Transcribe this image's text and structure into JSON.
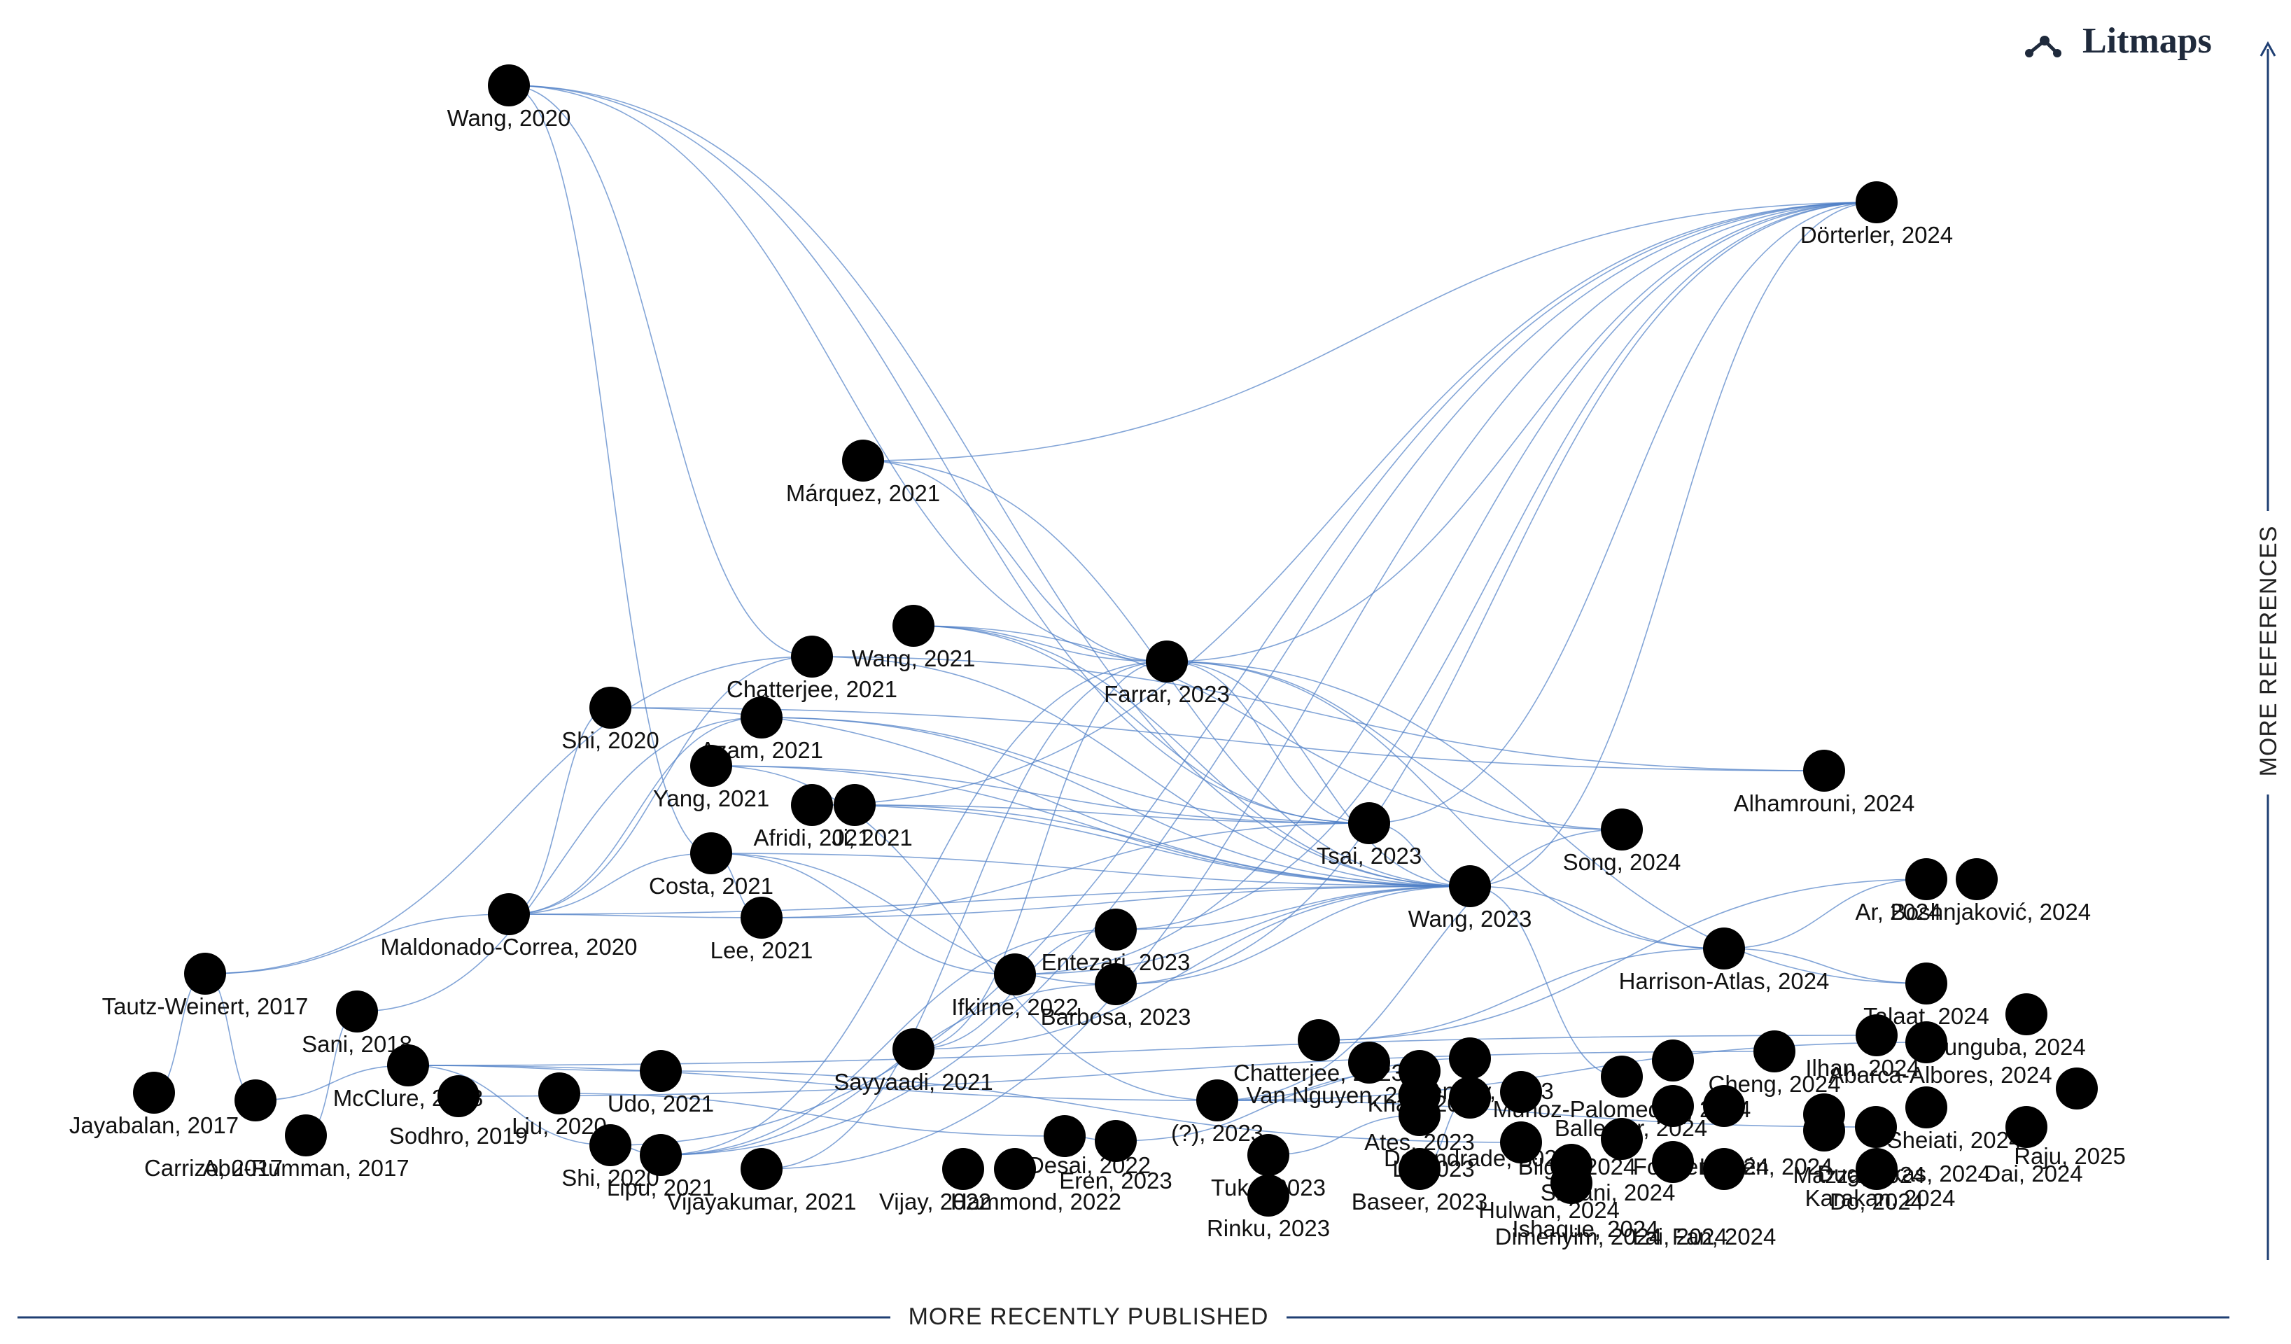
{
  "brand": {
    "name": "Litmaps",
    "icon": "litmaps-logo-icon"
  },
  "axes": {
    "x_label": "MORE RECENTLY PUBLISHED",
    "y_label": "MORE REFERENCES"
  },
  "colors": {
    "edge": "#4f7fc6",
    "node": "#000000",
    "axis": "#1f3f73"
  },
  "papers": [
    {
      "id": "wang2020",
      "label": "Wang, 2020"
    },
    {
      "id": "dorterler2024",
      "label": "Dörterler, 2024"
    },
    {
      "id": "marquez2021",
      "label": "Márquez, 2021"
    },
    {
      "id": "wang2021",
      "label": "Wang, 2021"
    },
    {
      "id": "chatterjee2021",
      "label": "Chatterjee, 2021"
    },
    {
      "id": "farrar2023",
      "label": "Farrar, 2023"
    },
    {
      "id": "shi2020a",
      "label": "Shi, 2020"
    },
    {
      "id": "azam2021",
      "label": "Azam, 2021"
    },
    {
      "id": "yang2021",
      "label": "Yang, 2021"
    },
    {
      "id": "afridi2021",
      "label": "Afridi, 2021"
    },
    {
      "id": "ji2021",
      "label": "Ji, 2021"
    },
    {
      "id": "alhamrouni2024",
      "label": "Alhamrouni, 2024"
    },
    {
      "id": "tsai2023",
      "label": "Tsai, 2023"
    },
    {
      "id": "song2024",
      "label": "Song, 2024"
    },
    {
      "id": "costa2021",
      "label": "Costa, 2021"
    },
    {
      "id": "wang2023",
      "label": "Wang, 2023"
    },
    {
      "id": "maldonado2020",
      "label": "Maldonado-Correa, 2020"
    },
    {
      "id": "lee2021",
      "label": "Lee, 2021"
    },
    {
      "id": "ar2024",
      "label": "Ar, 2024"
    },
    {
      "id": "boshnjakovic2024",
      "label": "Boshnjaković, 2024"
    },
    {
      "id": "tautz2017",
      "label": "Tautz-Weinert, 2017"
    },
    {
      "id": "entezari2023",
      "label": "Entezari, 2023"
    },
    {
      "id": "harrison2024",
      "label": "Harrison-Atlas, 2024"
    },
    {
      "id": "sani2018",
      "label": "Sani, 2018"
    },
    {
      "id": "ifkirne2022",
      "label": "Ifkirne, 2022"
    },
    {
      "id": "barbosa2023",
      "label": "Barbosa, 2023"
    },
    {
      "id": "talaat2024",
      "label": "Talaat, 2024"
    },
    {
      "id": "munguba2024",
      "label": "Munguba, 2024"
    },
    {
      "id": "chatterjee2023",
      "label": "Chatterjee, 2023"
    },
    {
      "id": "ilhan2024",
      "label": "Ilhan, 2024"
    },
    {
      "id": "abarca2024",
      "label": "Abarca-Albores, 2024"
    },
    {
      "id": "jayabalan2017",
      "label": "Jayabalan, 2017"
    },
    {
      "id": "mcclure2018",
      "label": "McClure, 2018"
    },
    {
      "id": "sayyaadi2021",
      "label": "Sayyaadi, 2021"
    },
    {
      "id": "udo2021",
      "label": "Udo, 2021"
    },
    {
      "id": "vannguyen2023",
      "label": "Van Nguyen, 2023"
    },
    {
      "id": "khan2023",
      "label": "Khan, 2023"
    },
    {
      "id": "bentley2023",
      "label": "Bentley, 2023"
    },
    {
      "id": "munozpalomeque2024",
      "label": "Muñoz-Palomeque, 2024"
    },
    {
      "id": "cheng2024",
      "label": "Cheng, 2024"
    },
    {
      "id": "ates2023",
      "label": "Ates, 2023"
    },
    {
      "id": "deandrade2024",
      "label": "De Andrade, 2024"
    },
    {
      "id": "ballester2024",
      "label": "Ballester, 2024"
    },
    {
      "id": "carrizo2017",
      "label": "Carrizo, 2017"
    },
    {
      "id": "sodhro2019",
      "label": "Sodhro, 2019"
    },
    {
      "id": "liu2020",
      "label": "Liu, 2020"
    },
    {
      "id": "sheiati2024",
      "label": "Sheiati, 2024"
    },
    {
      "id": "raju2025",
      "label": "Raju, 2025"
    },
    {
      "id": "q2023",
      "label": "(?), 2023"
    },
    {
      "id": "bilgili2024",
      "label": "Bilgili, 2024"
    },
    {
      "id": "forster2024",
      "label": "Forster, 2024"
    },
    {
      "id": "lutzen2024",
      "label": "Lutzén, 2024"
    },
    {
      "id": "mazza2024",
      "label": "Mazza, 2024"
    },
    {
      "id": "abu2017",
      "label": "Abu-Rumman, 2017"
    },
    {
      "id": "li2023",
      "label": "Li, 2023"
    },
    {
      "id": "simani2024",
      "label": "Simani, 2024"
    },
    {
      "id": "dugioukas2024",
      "label": "Dugioukas, 2024"
    },
    {
      "id": "dai2024",
      "label": "Dai, 2024"
    },
    {
      "id": "karakan2024",
      "label": "Karakan, 2024"
    },
    {
      "id": "desai2022",
      "label": "Desai, 2022"
    },
    {
      "id": "eren2023",
      "label": "Eren, 2023"
    },
    {
      "id": "shi2020b",
      "label": "Shi, 2020"
    },
    {
      "id": "hulwan2024",
      "label": "Hulwan, 2024"
    },
    {
      "id": "lipu2021",
      "label": "Lipu, 2021"
    },
    {
      "id": "tuka2023",
      "label": "Tuka, 2023"
    },
    {
      "id": "ishaque2024",
      "label": "Ishaque, 2024"
    },
    {
      "id": "vijayakumar2021",
      "label": "Vijayakumar, 2021"
    },
    {
      "id": "vijay2022",
      "label": "Vijay, 2022"
    },
    {
      "id": "hammond2022",
      "label": "Hammond, 2022"
    },
    {
      "id": "baseer2023",
      "label": "Baseer, 2023"
    },
    {
      "id": "dimenyim2024",
      "label": "Dimenyim, 2024"
    },
    {
      "id": "lai2024",
      "label": "Lai, 2024"
    },
    {
      "id": "fan2024",
      "label": "Fan, 2024"
    },
    {
      "id": "do2024",
      "label": "Do, 2024"
    },
    {
      "id": "rinku2023",
      "label": "Rinku, 2023"
    }
  ],
  "edges": [
    [
      "wang2020",
      "farrar2023"
    ],
    [
      "wang2020",
      "chatterjee2021"
    ],
    [
      "wang2020",
      "wang2023"
    ],
    [
      "wang2020",
      "costa2021"
    ],
    [
      "wang2020",
      "tsai2023"
    ],
    [
      "dorterler2024",
      "marquez2021"
    ],
    [
      "dorterler2024",
      "farrar2023"
    ],
    [
      "dorterler2024",
      "wang2023"
    ],
    [
      "dorterler2024",
      "tsai2023"
    ],
    [
      "dorterler2024",
      "vijayakumar2021"
    ],
    [
      "dorterler2024",
      "barbosa2023"
    ],
    [
      "dorterler2024",
      "entezari2023"
    ],
    [
      "dorterler2024",
      "lipu2021"
    ],
    [
      "dorterler2024",
      "ifkirne2022"
    ],
    [
      "dorterler2024",
      "shi2020b"
    ],
    [
      "dorterler2024",
      "afridi2021"
    ],
    [
      "marquez2021",
      "farrar2023"
    ],
    [
      "marquez2021",
      "wang2023"
    ],
    [
      "wang2021",
      "farrar2023"
    ],
    [
      "wang2021",
      "wang2023"
    ],
    [
      "wang2021",
      "tsai2023"
    ],
    [
      "wang2021",
      "song2024"
    ],
    [
      "chatterjee2021",
      "maldonado2020"
    ],
    [
      "chatterjee2021",
      "tautz2017"
    ],
    [
      "chatterjee2021",
      "wang2023"
    ],
    [
      "farrar2023",
      "tsai2023"
    ],
    [
      "farrar2023",
      "wang2023"
    ],
    [
      "farrar2023",
      "harrison2024"
    ],
    [
      "farrar2023",
      "talaat2024"
    ],
    [
      "farrar2023",
      "song2024"
    ],
    [
      "farrar2023",
      "vijayakumar2021"
    ],
    [
      "farrar2023",
      "sayyaadi2021"
    ],
    [
      "farrar2023",
      "lipu2021"
    ],
    [
      "shi2020a",
      "alhamrouni2024"
    ],
    [
      "shi2020a",
      "wang2023"
    ],
    [
      "shi2020a",
      "maldonado2020"
    ],
    [
      "azam2021",
      "wang2023"
    ],
    [
      "azam2021",
      "tsai2023"
    ],
    [
      "azam2021",
      "sani2018"
    ],
    [
      "azam2021",
      "maldonado2020"
    ],
    [
      "yang2021",
      "tsai2023"
    ],
    [
      "yang2021",
      "wang2023"
    ],
    [
      "yang2021",
      "q2023"
    ],
    [
      "afridi2021",
      "wang2023"
    ],
    [
      "ji2021",
      "tsai2023"
    ],
    [
      "ji2021",
      "wang2023"
    ],
    [
      "costa2021",
      "wang2023"
    ],
    [
      "costa2021",
      "lee2021"
    ],
    [
      "costa2021",
      "maldonado2020"
    ],
    [
      "costa2021",
      "barbosa2023"
    ],
    [
      "maldonado2020",
      "wang2023"
    ],
    [
      "maldonado2020",
      "tautz2017"
    ],
    [
      "maldonado2020",
      "lee2021"
    ],
    [
      "lee2021",
      "wang2023"
    ],
    [
      "lee2021",
      "tsai2023"
    ],
    [
      "tsai2023",
      "wang2023"
    ],
    [
      "wang2023",
      "harrison2024"
    ],
    [
      "wang2023",
      "entezari2023"
    ],
    [
      "wang2023",
      "barbosa2023"
    ],
    [
      "wang2023",
      "ifkirne2022"
    ],
    [
      "wang2023",
      "sayyaadi2021"
    ],
    [
      "wang2023",
      "munozpalomeque2024"
    ],
    [
      "harrison2024",
      "ar2024"
    ],
    [
      "harrison2024",
      "chatterjee2023"
    ],
    [
      "harrison2024",
      "talaat2024"
    ],
    [
      "alhamrouni2024",
      "chatterjee2021"
    ],
    [
      "song2024",
      "q2023"
    ],
    [
      "tautz2017",
      "jayabalan2017"
    ],
    [
      "tautz2017",
      "carrizo2017"
    ],
    [
      "mcclure2018",
      "udo2021"
    ],
    [
      "mcclure2018",
      "q2023"
    ],
    [
      "mcclure2018",
      "ilhan2024"
    ],
    [
      "mcclure2018",
      "shi2020b"
    ],
    [
      "sodhro2019",
      "cheng2024"
    ],
    [
      "liu2020",
      "desai2022"
    ],
    [
      "udo2021",
      "hulwan2024"
    ],
    [
      "q2023",
      "bentley2023"
    ],
    [
      "q2023",
      "abarca2024"
    ],
    [
      "q2023",
      "dugioukas2024"
    ],
    [
      "shi2020b",
      "lipu2021"
    ],
    [
      "lipu2021",
      "barbosa2023"
    ],
    [
      "lipu2021",
      "entezari2023"
    ],
    [
      "desai2022",
      "eren2023"
    ],
    [
      "eren2023",
      "khan2023"
    ],
    [
      "chatterjee2023",
      "ar2024"
    ],
    [
      "tuka2023",
      "li2023"
    ],
    [
      "baseer2023",
      "deandrade2024"
    ],
    [
      "rinku2023",
      "tuka2023"
    ],
    [
      "abu2017",
      "sani2018"
    ],
    [
      "carrizo2017",
      "mcclure2018"
    ],
    [
      "ifkirne2022",
      "costa2021"
    ],
    [
      "sayyaadi2021",
      "entezari2023"
    ]
  ]
}
